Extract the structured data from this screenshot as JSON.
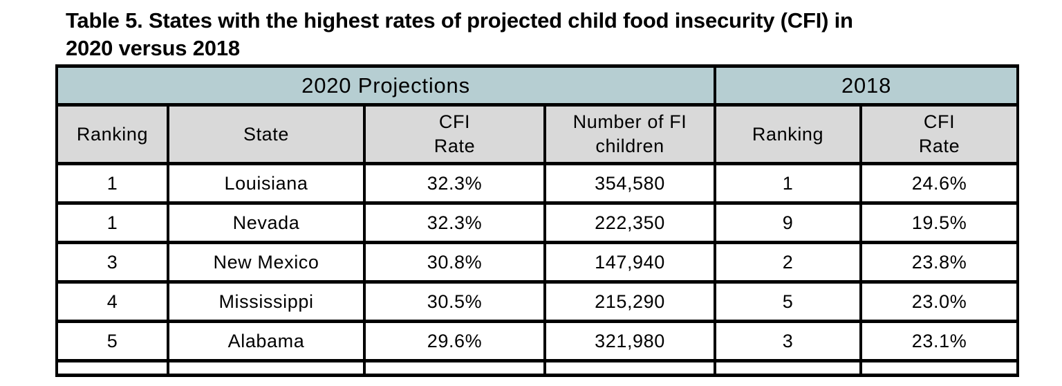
{
  "title": {
    "lines": "Table 5. States with the highest rates of projected child food insecurity (CFI) in\n2020 versus 2018"
  },
  "colors": {
    "group_header_bg": "#b6ced2",
    "column_header_bg": "#d9d9d9",
    "border": "#000000",
    "text": "#000000",
    "background": "#ffffff"
  },
  "table": {
    "groups": [
      {
        "label": "2020 Projections",
        "colspan": 4
      },
      {
        "label": "2018",
        "colspan": 2
      }
    ],
    "columns": [
      {
        "key": "rank2020",
        "label": "Ranking",
        "group": "2020 Projections"
      },
      {
        "key": "state",
        "label": "State",
        "group": "2020 Projections"
      },
      {
        "key": "cfi2020",
        "label": "CFI\nRate",
        "group": "2020 Projections"
      },
      {
        "key": "fi_children",
        "label": "Number of FI\nchildren",
        "group": "2020 Projections"
      },
      {
        "key": "rank2018",
        "label": "Ranking",
        "group": "2018"
      },
      {
        "key": "cfi2018",
        "label": "CFI\nRate",
        "group": "2018"
      }
    ],
    "rows": [
      {
        "rank2020": "1",
        "state": "Louisiana",
        "cfi2020": "32.3%",
        "fi_children": "354,580",
        "rank2018": "1",
        "cfi2018": "24.6%"
      },
      {
        "rank2020": "1",
        "state": "Nevada",
        "cfi2020": "32.3%",
        "fi_children": "222,350",
        "rank2018": "9",
        "cfi2018": "19.5%"
      },
      {
        "rank2020": "3",
        "state": "New Mexico",
        "cfi2020": "30.8%",
        "fi_children": "147,940",
        "rank2018": "2",
        "cfi2018": "23.8%"
      },
      {
        "rank2020": "4",
        "state": "Mississippi",
        "cfi2020": "30.5%",
        "fi_children": "215,290",
        "rank2018": "5",
        "cfi2018": "23.0%"
      },
      {
        "rank2020": "5",
        "state": "Alabama",
        "cfi2020": "29.6%",
        "fi_children": "321,980",
        "rank2018": "3",
        "cfi2018": "23.1%"
      }
    ]
  }
}
